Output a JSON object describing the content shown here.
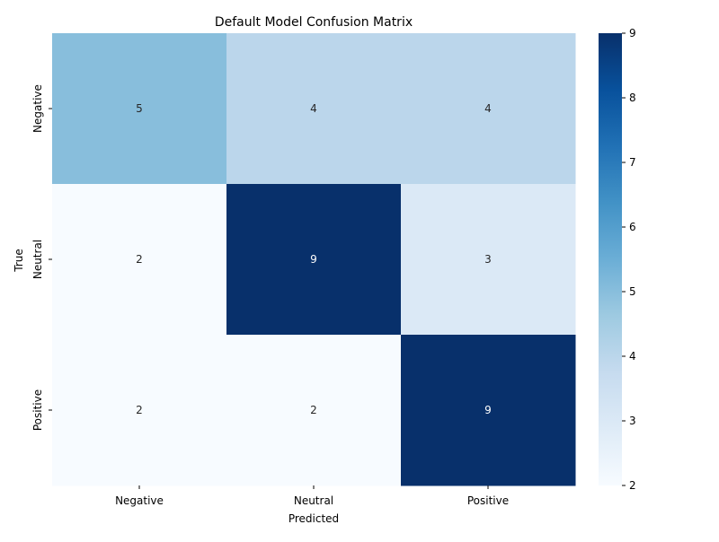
{
  "chart_data": {
    "type": "heatmap",
    "title": "Default Model Confusion Matrix",
    "xlabel": "Predicted",
    "ylabel": "True",
    "x_categories": [
      "Negative",
      "Neutral",
      "Positive"
    ],
    "y_categories": [
      "Negative",
      "Neutral",
      "Positive"
    ],
    "values": [
      [
        5,
        4,
        4
      ],
      [
        2,
        9,
        3
      ],
      [
        2,
        2,
        9
      ]
    ],
    "colormap": "Blues",
    "vmin": 2,
    "vmax": 9,
    "colorbar_ticks": [
      "2",
      "3",
      "4",
      "5",
      "6",
      "7",
      "8",
      "9"
    ],
    "colors": {
      "light": "#f7fbff",
      "dark": "#08306b",
      "text_light": "#ffffff",
      "text_dark": "#262626"
    }
  }
}
